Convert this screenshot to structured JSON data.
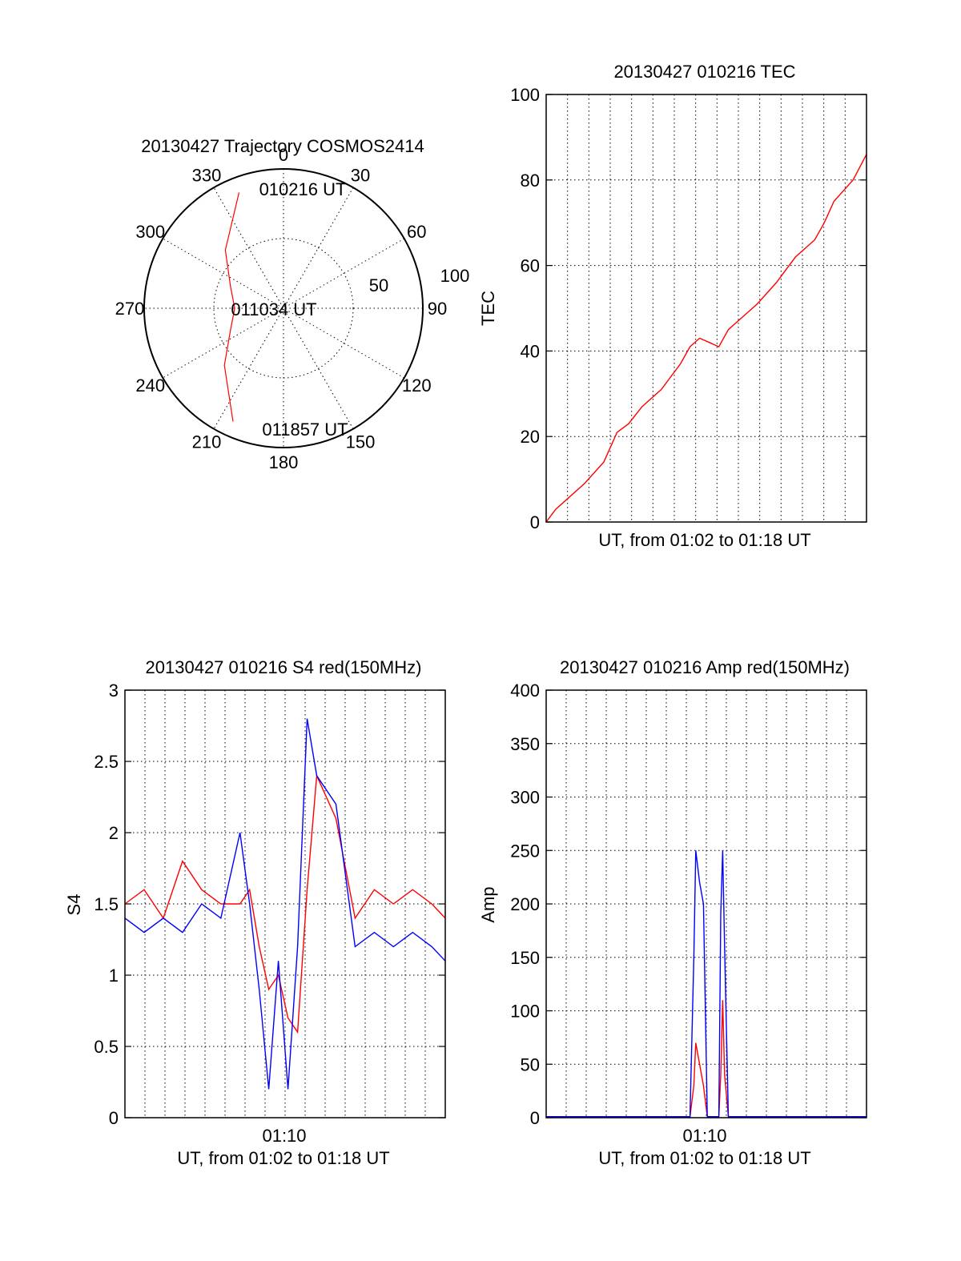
{
  "chart_data": [
    {
      "type": "polar",
      "title": "20130427 Trajectory COSMOS2414",
      "azimuth_labels": [
        "0",
        "30",
        "60",
        "90",
        "120",
        "150",
        "180",
        "210",
        "240",
        "270",
        "300",
        "330"
      ],
      "radius_labels": [
        "50",
        "100"
      ],
      "rlim": [
        0,
        100
      ],
      "grid": true,
      "trajectory": {
        "color": "#ff0000",
        "points": [
          [
            339,
            89
          ],
          [
            315,
            59
          ],
          [
            292,
            41
          ],
          [
            270,
            35
          ],
          [
            248,
            41
          ],
          [
            226,
            59
          ],
          [
            204,
            89
          ]
        ]
      },
      "annotations": [
        {
          "text": "010216 UT",
          "azimuth": 352,
          "radius": 85
        },
        {
          "text": "011034 UT",
          "azimuth": 0,
          "radius": 0
        },
        {
          "text": "011857 UT",
          "azimuth": 188,
          "radius": 88
        }
      ]
    },
    {
      "type": "line",
      "title": "20130427 010216 TEC",
      "xlabel": "UT, from 01:02 to 01:18 UT",
      "ylabel": "TEC",
      "xlim": [
        0,
        16.7
      ],
      "ylim": [
        0,
        100
      ],
      "yticks": [
        "0",
        "20",
        "40",
        "60",
        "80",
        "100"
      ],
      "grid": true,
      "series": [
        {
          "color": "#ff0000",
          "x": [
            0,
            0.5,
            1,
            2,
            3,
            3.7,
            4.3,
            5,
            6,
            7,
            7.5,
            8,
            8.5,
            9,
            9.5,
            10,
            11,
            12,
            13,
            14,
            14.5,
            15,
            16,
            16.7
          ],
          "y": [
            0,
            3,
            5,
            9,
            14,
            21,
            23,
            27,
            31,
            37,
            41,
            43,
            42,
            41,
            45,
            47,
            51,
            56,
            62,
            66,
            70,
            75,
            80,
            86
          ]
        }
      ]
    },
    {
      "type": "line",
      "title": "20130427 010216 S4 red(150MHz)",
      "xlabel": "UT, from 01:02 to 01:18 UT",
      "ylabel": "S4",
      "xlim": [
        0,
        16.7
      ],
      "ylim": [
        0,
        3
      ],
      "xticks": [
        "01:10"
      ],
      "yticks": [
        "0",
        "0.5",
        "1",
        "1.5",
        "2",
        "2.5",
        "3"
      ],
      "grid": true,
      "series": [
        {
          "color": "#ff0000",
          "x": [
            0,
            1,
            2,
            3,
            4,
            5,
            6,
            6.5,
            7,
            7.5,
            8,
            8.5,
            9,
            9.5,
            10,
            11,
            12,
            13,
            14,
            15,
            16,
            16.7
          ],
          "y": [
            1.5,
            1.6,
            1.4,
            1.8,
            1.6,
            1.5,
            1.5,
            1.6,
            1.2,
            0.9,
            1.0,
            0.7,
            0.6,
            1.6,
            2.4,
            2.1,
            1.4,
            1.6,
            1.5,
            1.6,
            1.5,
            1.4
          ]
        },
        {
          "color": "#0000ff",
          "x": [
            0,
            1,
            2,
            3,
            4,
            5,
            6,
            6.5,
            7,
            7.5,
            8,
            8.5,
            9,
            9.5,
            10,
            11,
            12,
            13,
            14,
            15,
            16,
            16.7
          ],
          "y": [
            1.4,
            1.3,
            1.4,
            1.3,
            1.5,
            1.4,
            2.0,
            1.5,
            0.9,
            0.2,
            1.1,
            0.2,
            1.2,
            2.8,
            2.4,
            2.2,
            1.2,
            1.3,
            1.2,
            1.3,
            1.2,
            1.1
          ]
        }
      ]
    },
    {
      "type": "line",
      "title": "20130427 010216 Amp red(150MHz)",
      "xlabel": "UT, from 01:02 to 01:18 UT",
      "ylabel": "Amp",
      "xlim": [
        0,
        16.7
      ],
      "ylim": [
        0,
        400
      ],
      "xticks": [
        "01:10"
      ],
      "yticks": [
        "0",
        "50",
        "100",
        "150",
        "200",
        "250",
        "300",
        "350",
        "400"
      ],
      "grid": true,
      "series": [
        {
          "color": "#ff0000",
          "x": [
            0,
            7.5,
            7.7,
            7.8,
            8.0,
            8.2,
            8.4,
            9.0,
            9.1,
            9.2,
            9.3,
            9.5,
            16.7
          ],
          "y": [
            1,
            1,
            30,
            70,
            50,
            30,
            1,
            1,
            40,
            110,
            40,
            1,
            1
          ]
        },
        {
          "color": "#0000ff",
          "x": [
            0,
            7.5,
            7.7,
            7.8,
            8.0,
            8.2,
            8.4,
            9.0,
            9.1,
            9.2,
            9.3,
            9.5,
            16.7
          ],
          "y": [
            1,
            1,
            150,
            250,
            220,
            200,
            1,
            1,
            190,
            250,
            160,
            1,
            1
          ]
        }
      ]
    }
  ]
}
